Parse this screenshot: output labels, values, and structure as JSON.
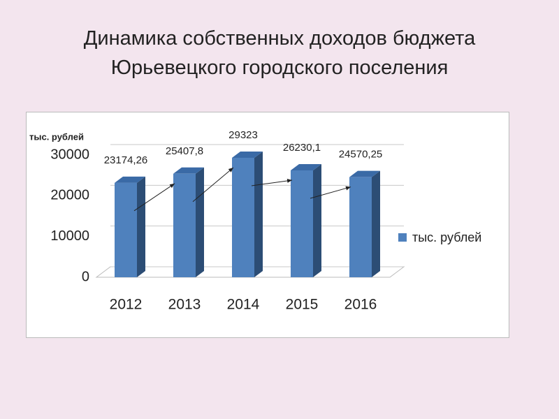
{
  "chart_data": {
    "type": "bar3d",
    "title": "Динамика собственных доходов бюджета Юрьевецкого городского поселения",
    "y_label": "тыс. рублей",
    "categories": [
      "2012",
      "2013",
      "2014",
      "2015",
      "2016"
    ],
    "series": [
      {
        "name": "тыс. рублей",
        "color": "#4f81bd",
        "values": [
          23174.26,
          25407.8,
          29323,
          26230.1,
          24570.25
        ],
        "value_labels": [
          "23174,26",
          "25407,8",
          "29323",
          "26230,1",
          "24570,25"
        ]
      }
    ],
    "ylim": [
      0,
      30000
    ],
    "yticks": [
      0,
      10000,
      20000,
      30000
    ],
    "grid": true,
    "legend": "right"
  }
}
